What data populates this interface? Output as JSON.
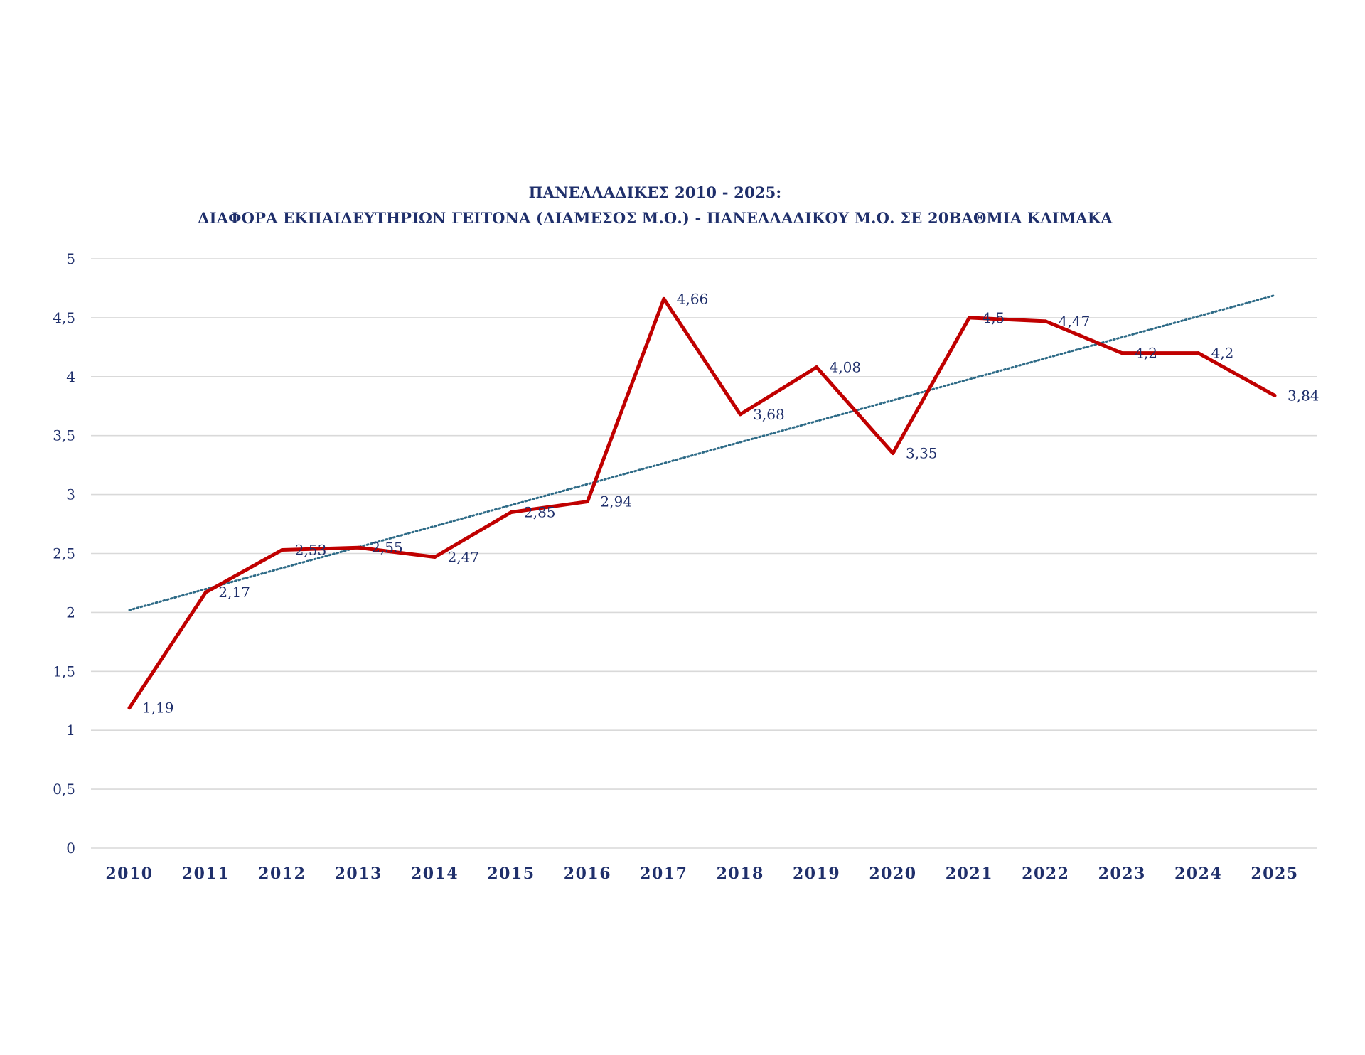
{
  "chart_data": {
    "type": "line",
    "title": "ΠΑΝΕΛΛΑΔΙΚΕΣ 2010 - 2025:",
    "subtitle": "ΔΙΑΦΟΡΑ ΕΚΠΑΙΔΕΥΤΗΡΙΩΝ ΓΕΙΤΟΝΑ (ΔΙΑΜΕΣΟΣ Μ.Ο.) - ΠΑΝΕΛΛΑΔΙΚΟΥ Μ.Ο. ΣΕ 20ΒΑΘΜΙΑ ΚΛΙΜΑΚΑ",
    "xlabel": "",
    "ylabel": "",
    "categories": [
      "2010",
      "2011",
      "2012",
      "2013",
      "2014",
      "2015",
      "2016",
      "2017",
      "2018",
      "2019",
      "2020",
      "2021",
      "2022",
      "2023",
      "2024",
      "2025"
    ],
    "series": [
      {
        "values": [
          1.19,
          2.17,
          2.53,
          2.55,
          2.47,
          2.85,
          2.94,
          4.66,
          3.68,
          4.08,
          3.35,
          4.5,
          4.47,
          4.2,
          4.2,
          3.84
        ],
        "data_labels": [
          "1,19",
          "2,17",
          "2,53",
          "2,55",
          "2,47",
          "2,85",
          "2,94",
          "4,66",
          "3,68",
          "4,08",
          "3,35",
          "4,5",
          "4,47",
          "4,2",
          "4,2",
          "3,84"
        ],
        "color": "#c00000"
      }
    ],
    "trendline": {
      "type": "linear",
      "start": 2.02,
      "end": 4.69,
      "color": "#2e6b87",
      "style": "dotted"
    },
    "ylim": [
      0,
      5
    ],
    "yticks": [
      0,
      0.5,
      1,
      1.5,
      2,
      2.5,
      3,
      3.5,
      4,
      4.5,
      5
    ],
    "ytick_labels": [
      "0",
      "0,5",
      "1",
      "1,5",
      "2",
      "2,5",
      "3",
      "3,5",
      "4",
      "4,5",
      "5"
    ],
    "grid": true,
    "legend": "none",
    "colors": {
      "text": "#1f2f6b",
      "line": "#c00000",
      "trend": "#2e6b87",
      "grid": "#d9d9d9"
    }
  }
}
